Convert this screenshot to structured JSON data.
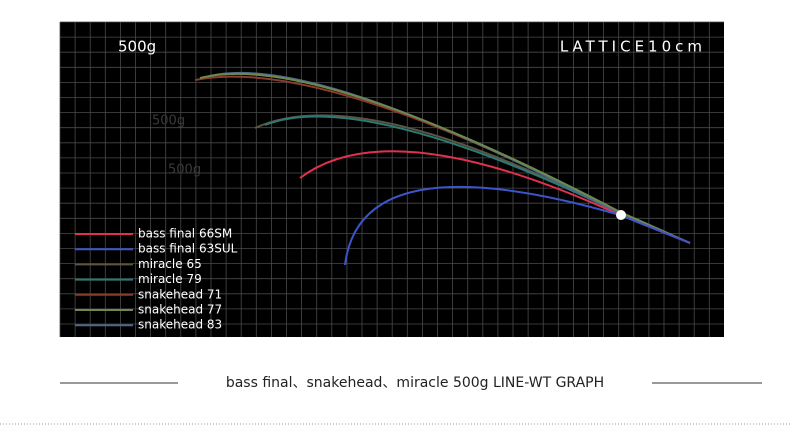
{
  "header": {
    "weight": "500g",
    "lattice": "LATTICE10cm"
  },
  "ghost_labels": [
    "500g",
    "500g"
  ],
  "series": [
    {
      "name": "bass final 66SM",
      "color": "#e0324f"
    },
    {
      "name": "bass final 63SUL",
      "color": "#3b56cc"
    },
    {
      "name": "miracle 65",
      "color": "#5a5640"
    },
    {
      "name": "miracle 79",
      "color": "#2b7a76"
    },
    {
      "name": "snakehead 71",
      "color": "#8a3b2e"
    },
    {
      "name": "snakehead 77",
      "color": "#6d8a4c"
    },
    {
      "name": "snakehead 83",
      "color": "#4d6a8c"
    }
  ],
  "caption": "bass final、snakehead、miracle 500g LINE-WT GRAPH"
}
